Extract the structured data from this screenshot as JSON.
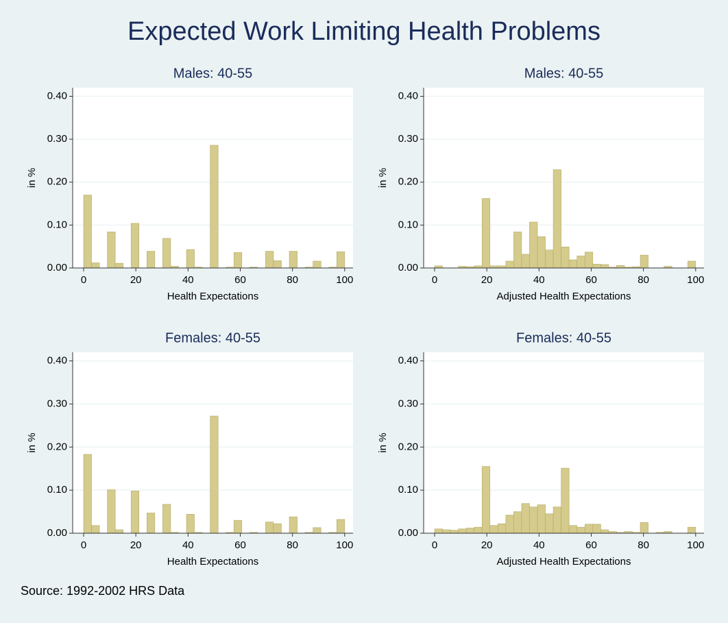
{
  "title": "Expected Work Limiting Health Problems",
  "note": "Source: 1992-2002 HRS Data",
  "chart_data": [
    {
      "type": "histogram",
      "title": "Males: 40-55",
      "xlabel": "Health Expectations",
      "ylabel": "in %",
      "color": "#d4cb8c",
      "grid": true,
      "bins": [
        0,
        3.03,
        6.06,
        9.09,
        12.12,
        15.15,
        18.18,
        21.21,
        24.24,
        27.27,
        30.3,
        33.33,
        36.36,
        39.39,
        42.42,
        45.45,
        48.48,
        51.52,
        54.55,
        57.58,
        60.61,
        63.64,
        66.67,
        69.7,
        72.73,
        75.76,
        78.79,
        81.82,
        84.85,
        87.88,
        90.91,
        93.94,
        96.97,
        100
      ],
      "values": [
        0.17,
        0.012,
        0,
        0.084,
        0.011,
        0,
        0.104,
        0,
        0.039,
        0,
        0.069,
        0.004,
        0,
        0.043,
        0.002,
        0,
        0.286,
        0,
        0.002,
        0.036,
        0,
        0.002,
        0,
        0.039,
        0.017,
        0,
        0.039,
        0,
        0.002,
        0.016,
        0,
        0.002,
        0.038
      ],
      "xlim": [
        -4.2,
        103.2
      ],
      "xticks": [
        0,
        20,
        40,
        60,
        80,
        100
      ],
      "ylim": [
        0,
        0.42
      ],
      "yticks": [
        {
          "value": 0,
          "label": "0.00"
        },
        {
          "value": 0.1,
          "label": "0.10"
        },
        {
          "value": 0.2,
          "label": "0.20"
        },
        {
          "value": 0.3,
          "label": "0.30"
        },
        {
          "value": 0.4,
          "label": "0.40"
        }
      ]
    },
    {
      "type": "histogram",
      "title": "Males: 40-55",
      "xlabel": "Adjusted Health Expectations",
      "ylabel": "in %",
      "color": "#d4cb8c",
      "grid": true,
      "bins": [
        0,
        3.03,
        6.06,
        9.09,
        12.12,
        15.15,
        18.18,
        21.21,
        24.24,
        27.27,
        30.3,
        33.33,
        36.36,
        39.39,
        42.42,
        45.45,
        48.48,
        51.52,
        54.55,
        57.58,
        60.61,
        63.64,
        66.67,
        69.7,
        72.73,
        75.76,
        78.79,
        81.82,
        84.85,
        87.88,
        90.91,
        93.94,
        96.97,
        100
      ],
      "values": [
        0.005,
        0,
        0,
        0.004,
        0.003,
        0.005,
        0.162,
        0.005,
        0.005,
        0.016,
        0.084,
        0.032,
        0.107,
        0.073,
        0.042,
        0.229,
        0.049,
        0.019,
        0.028,
        0.037,
        0.009,
        0.008,
        0.002,
        0.006,
        0.002,
        0.003,
        0.03,
        0,
        0,
        0.004,
        0,
        0,
        0.016
      ],
      "xlim": [
        -4.2,
        103.2
      ],
      "xticks": [
        0,
        20,
        40,
        60,
        80,
        100
      ],
      "ylim": [
        0,
        0.42
      ],
      "yticks": [
        {
          "value": 0,
          "label": "0.00"
        },
        {
          "value": 0.1,
          "label": "0.10"
        },
        {
          "value": 0.2,
          "label": "0.20"
        },
        {
          "value": 0.3,
          "label": "0.30"
        },
        {
          "value": 0.4,
          "label": "0.40"
        }
      ]
    },
    {
      "type": "histogram",
      "title": "Females: 40-55",
      "xlabel": "Health Expectations",
      "ylabel": "in %",
      "color": "#d4cb8c",
      "grid": true,
      "bins": [
        0,
        3.03,
        6.06,
        9.09,
        12.12,
        15.15,
        18.18,
        21.21,
        24.24,
        27.27,
        30.3,
        33.33,
        36.36,
        39.39,
        42.42,
        45.45,
        48.48,
        51.52,
        54.55,
        57.58,
        60.61,
        63.64,
        66.67,
        69.7,
        72.73,
        75.76,
        78.79,
        81.82,
        84.85,
        87.88,
        90.91,
        93.94,
        96.97,
        100
      ],
      "values": [
        0.183,
        0.018,
        0,
        0.101,
        0.008,
        0,
        0.098,
        0,
        0.047,
        0,
        0.067,
        0.002,
        0,
        0.044,
        0.002,
        0,
        0.272,
        0,
        0.002,
        0.03,
        0,
        0.002,
        0,
        0.026,
        0.022,
        0,
        0.038,
        0,
        0.002,
        0.013,
        0,
        0.002,
        0.032
      ],
      "xlim": [
        -4.2,
        103.2
      ],
      "xticks": [
        0,
        20,
        40,
        60,
        80,
        100
      ],
      "ylim": [
        0,
        0.42
      ],
      "yticks": [
        {
          "value": 0,
          "label": "0.00"
        },
        {
          "value": 0.1,
          "label": "0.10"
        },
        {
          "value": 0.2,
          "label": "0.20"
        },
        {
          "value": 0.3,
          "label": "0.30"
        },
        {
          "value": 0.4,
          "label": "0.40"
        }
      ]
    },
    {
      "type": "histogram",
      "title": "Females: 40-55",
      "xlabel": "Adjusted Health Expectations",
      "ylabel": "in %",
      "color": "#d4cb8c",
      "grid": true,
      "bins": [
        0,
        3.03,
        6.06,
        9.09,
        12.12,
        15.15,
        18.18,
        21.21,
        24.24,
        27.27,
        30.3,
        33.33,
        36.36,
        39.39,
        42.42,
        45.45,
        48.48,
        51.52,
        54.55,
        57.58,
        60.61,
        63.64,
        66.67,
        69.7,
        72.73,
        75.76,
        78.79,
        81.82,
        84.85,
        87.88,
        90.91,
        93.94,
        96.97,
        100
      ],
      "values": [
        0.01,
        0.008,
        0.007,
        0.01,
        0.012,
        0.014,
        0.155,
        0.018,
        0.022,
        0.042,
        0.05,
        0.069,
        0.061,
        0.066,
        0.045,
        0.061,
        0.151,
        0.018,
        0.014,
        0.021,
        0.021,
        0.008,
        0.004,
        0.002,
        0.004,
        0.002,
        0.025,
        0,
        0.002,
        0.004,
        0,
        0,
        0.014
      ],
      "xlim": [
        -4.2,
        103.2
      ],
      "xticks": [
        0,
        20,
        40,
        60,
        80,
        100
      ],
      "ylim": [
        0,
        0.42
      ],
      "yticks": [
        {
          "value": 0,
          "label": "0.00"
        },
        {
          "value": 0.1,
          "label": "0.10"
        },
        {
          "value": 0.2,
          "label": "0.20"
        },
        {
          "value": 0.3,
          "label": "0.30"
        },
        {
          "value": 0.4,
          "label": "0.40"
        }
      ]
    }
  ]
}
